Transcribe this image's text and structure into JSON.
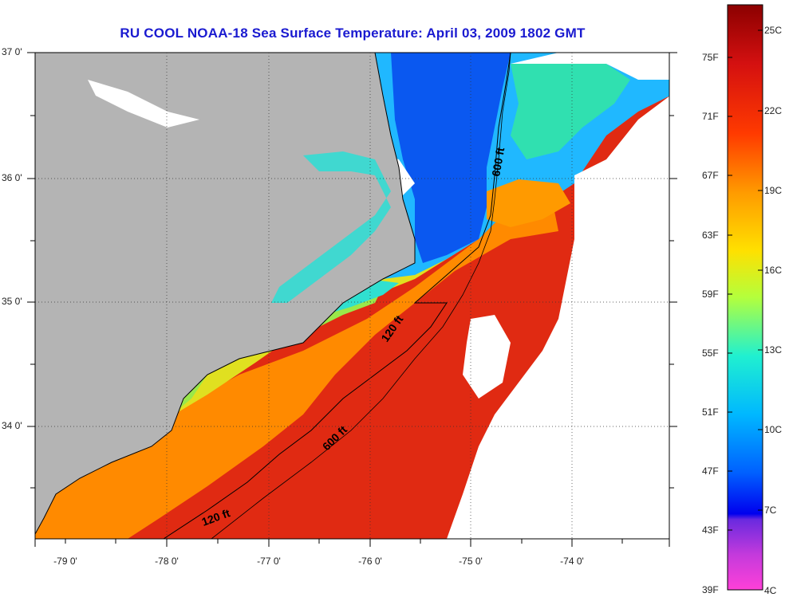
{
  "title": "RU COOL  NOAA-18  Sea Surface Temperature:  April 03, 2009 1802 GMT",
  "map": {
    "lat_labels": [
      "37 0'",
      "36 0'",
      "35 0'",
      "34 0'"
    ],
    "lon_labels": [
      "-79 0'",
      "-78 0'",
      "-77 0'",
      "-76 0'",
      "-75 0'",
      "-74 0'"
    ],
    "isobath_labels": [
      "600 ft",
      "120 ft",
      "600 ft",
      "120 ft"
    ],
    "colors": {
      "land": "#b4b4b4",
      "cloud": "#ffffff",
      "frame": "#000000"
    }
  },
  "colorbar": {
    "fahrenheit": [
      "75F",
      "71F",
      "67F",
      "63F",
      "59F",
      "55F",
      "51F",
      "47F",
      "43F",
      "39F"
    ],
    "celsius": [
      "25C",
      "22C",
      "19C",
      "16C",
      "13C",
      "10C",
      "7C",
      "4C"
    ]
  }
}
